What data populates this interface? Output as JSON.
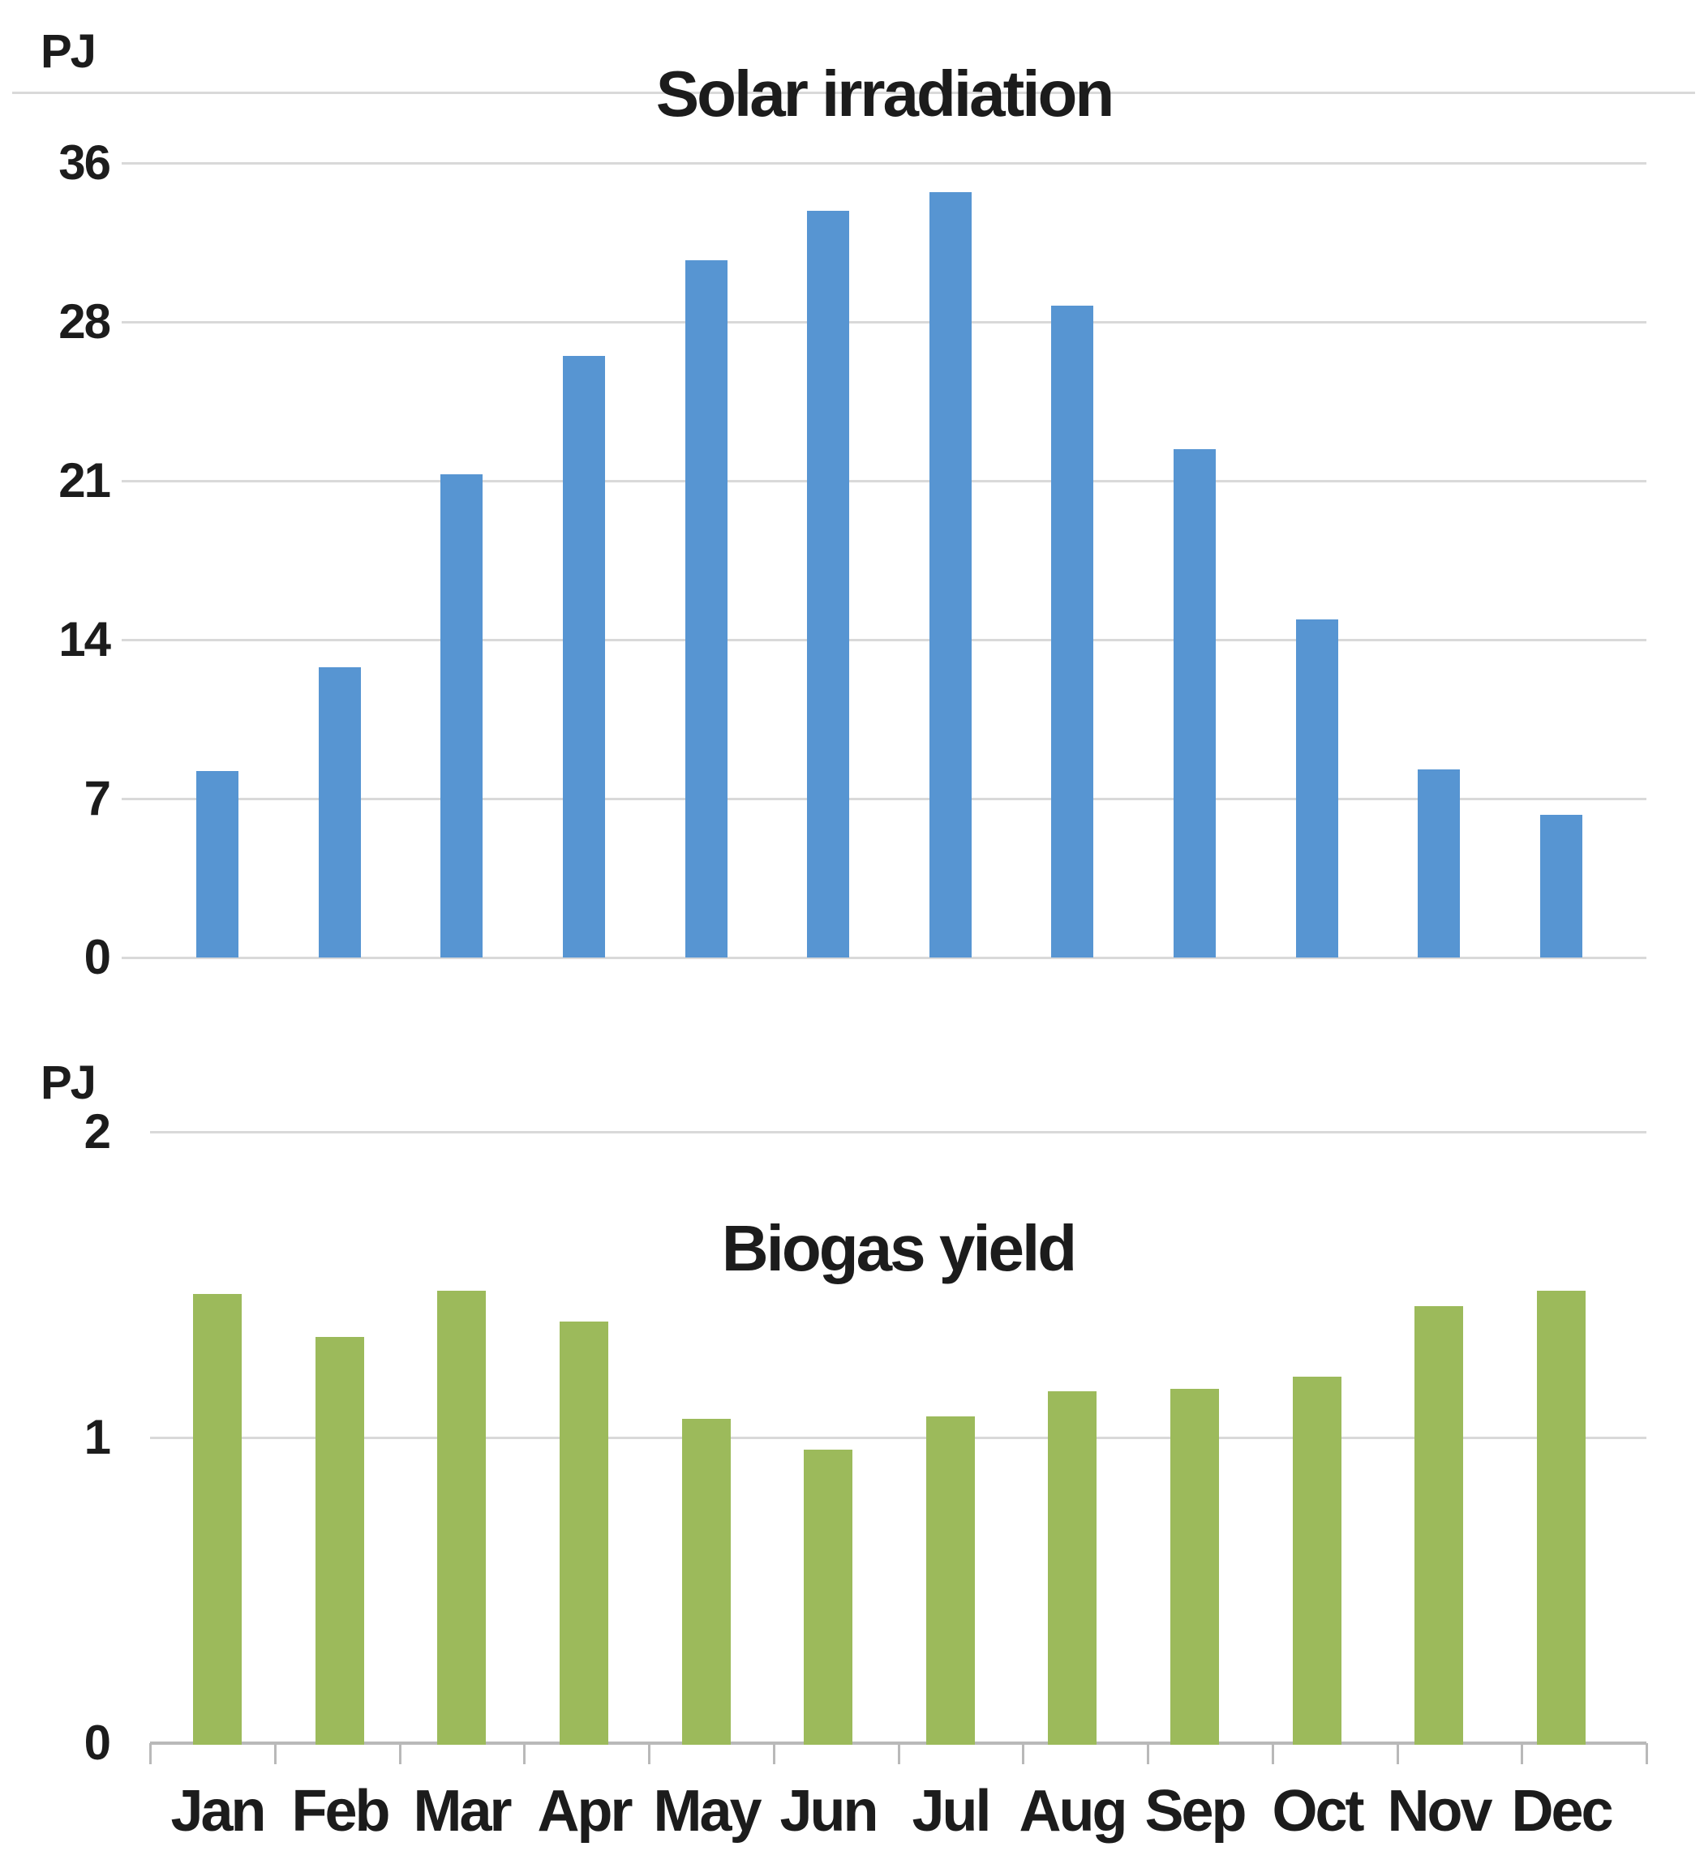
{
  "figure": {
    "description": "Two stacked monthly bar charts sharing a month axis"
  },
  "colors": {
    "solar_bar": "#5795d2",
    "biogas_bar": "#9cba5b",
    "gridline": "#d9d9d9",
    "axis_line": "#b9b9b9",
    "text": "#1c1c1c"
  },
  "chart_data": [
    {
      "type": "bar",
      "title": "Solar irradiation",
      "unit_label": "PJ",
      "categories": [
        "Jan",
        "Feb",
        "Mar",
        "Apr",
        "May",
        "Jun",
        "Jul",
        "Aug",
        "Sep",
        "Oct",
        "Nov",
        "Dec"
      ],
      "values": [
        8.2,
        12.8,
        21.3,
        26.5,
        30.7,
        32.9,
        33.7,
        28.7,
        22.4,
        14.9,
        8.3,
        6.3
      ],
      "ylabel": "PJ",
      "xlabel": "",
      "ylim": [
        0,
        36
      ],
      "y_tick_labels": [
        "36",
        "28",
        "21",
        "14",
        "7",
        "0"
      ],
      "grid": true,
      "legend_position": "none",
      "bar_color": "#5795d2"
    },
    {
      "type": "bar",
      "title": "Biogas yield",
      "unit_label": "PJ",
      "categories": [
        "Jan",
        "Feb",
        "Mar",
        "Apr",
        "May",
        "Jun",
        "Jul",
        "Aug",
        "Sep",
        "Oct",
        "Nov",
        "Dec"
      ],
      "values": [
        1.47,
        1.33,
        1.48,
        1.38,
        1.06,
        0.96,
        1.07,
        1.15,
        1.16,
        1.2,
        1.43,
        1.48
      ],
      "ylabel": "PJ",
      "xlabel": "",
      "ylim": [
        0,
        2
      ],
      "y_tick_labels": [
        "2",
        "1",
        "0"
      ],
      "grid": true,
      "legend_position": "none",
      "bar_color": "#9cba5b"
    }
  ]
}
